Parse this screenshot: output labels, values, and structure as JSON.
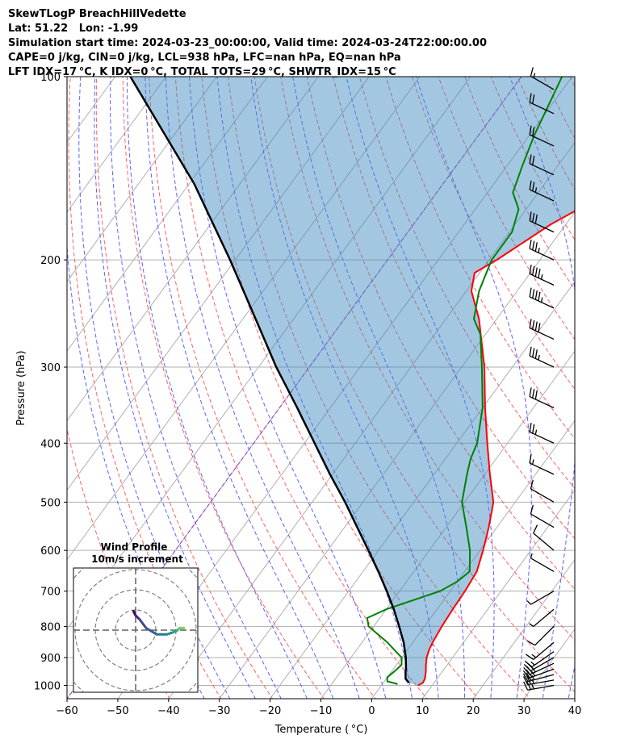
{
  "header": {
    "line1": "SkewTLogP BreachHillVedette",
    "line2": "Lat: 51.22   Lon: -1.99",
    "line3": "Simulation start time: 2024-03-23_00:00:00, Valid time: 2024-03-24T22:00:00.00",
    "line4": "CAPE=0 j/kg, CIN=0 j/kg, LCL=938 hPa, LFC=nan hPa, EQ=nan hPa",
    "line5": "LFT IDX=17 °C, K IDX=0 °C, TOTAL TOTS=29 °C, SHWTR_IDX=15 °C"
  },
  "chart_data": {
    "type": "line",
    "xlabel": "Temperature ( °C)",
    "ylabel": "Pressure (hPa)",
    "xlim": [
      -60,
      40
    ],
    "ylim": [
      1050,
      100
    ],
    "yscale": "log",
    "xticks": [
      -60,
      -50,
      -40,
      -30,
      -20,
      -10,
      0,
      10,
      20,
      30,
      40
    ],
    "xtick_labels": [
      "−60",
      "−50",
      "−40",
      "−30",
      "−20",
      "−10",
      "0",
      "10",
      "20",
      "30",
      "40"
    ],
    "yticks": [
      1000,
      900,
      800,
      700,
      600,
      500,
      400,
      300,
      200,
      100
    ],
    "ytick_labels": [
      "1000",
      "900",
      "800",
      "700",
      "600",
      "500",
      "400",
      "300",
      "200",
      "100"
    ],
    "series": [
      {
        "role": "temperature",
        "color": "#ff0000",
        "pressure": [
          1000,
          990,
          975,
          950,
          925,
          900,
          875,
          850,
          800,
          750,
          700,
          650,
          600,
          550,
          500,
          450,
          400,
          350,
          300,
          250,
          225,
          210,
          200,
          175,
          160,
          150,
          140,
          125,
          115,
          100
        ],
        "temperature": [
          7.2,
          7.8,
          7.6,
          6.8,
          5.8,
          4.9,
          4.3,
          3.9,
          3.4,
          3.1,
          2.9,
          2.4,
          0.6,
          -1.6,
          -4.3,
          -9,
          -14,
          -19.5,
          -25.5,
          -33.5,
          -39,
          -41,
          -38.5,
          -33,
          -28,
          -26,
          -24,
          -21.5,
          -20,
          -18
        ]
      },
      {
        "role": "dewpoint",
        "color": "#008000",
        "pressure": [
          995,
          985,
          970,
          950,
          925,
          900,
          875,
          850,
          800,
          775,
          750,
          700,
          675,
          650,
          600,
          550,
          500,
          450,
          425,
          400,
          350,
          300,
          265,
          250,
          225,
          200,
          180,
          165,
          155,
          140,
          125,
          100
        ],
        "temperature": [
          3,
          0.6,
          0,
          0.5,
          1,
          0,
          -2.5,
          -5,
          -11,
          -12.5,
          -10,
          -2,
          0,
          1,
          -2,
          -6,
          -10.5,
          -13.5,
          -15,
          -16,
          -20,
          -26,
          -31,
          -34.5,
          -37.5,
          -39.5,
          -39.5,
          -41.5,
          -45,
          -47,
          -49,
          -52
        ]
      },
      {
        "role": "parcel",
        "color": "#000000",
        "pressure": [
          990,
          975,
          950,
          938,
          900,
          850,
          800,
          750,
          700,
          650,
          600,
          550,
          500,
          450,
          400,
          350,
          300,
          250,
          200,
          150,
          100
        ],
        "temperature": [
          5,
          3.8,
          2.8,
          2.4,
          0.8,
          -1.8,
          -5,
          -8.5,
          -12.5,
          -17,
          -22,
          -27.5,
          -33.5,
          -40.5,
          -48,
          -56.5,
          -66.5,
          -77.5,
          -91,
          -109,
          -137
        ]
      }
    ],
    "wind_barbs": {
      "pressure": [
        1000,
        980,
        960,
        940,
        920,
        900,
        880,
        850,
        800,
        750,
        700,
        650,
        600,
        550,
        500,
        450,
        400,
        350,
        300,
        270,
        240,
        220,
        200,
        180,
        160,
        145,
        130,
        115,
        105
      ],
      "speed_kt": [
        25,
        25,
        25,
        25,
        25,
        20,
        15,
        15,
        10,
        5,
        5,
        5,
        10,
        10,
        10,
        15,
        25,
        30,
        35,
        40,
        45,
        45,
        35,
        30,
        25,
        20,
        20,
        20,
        15
      ],
      "direction_deg": [
        260,
        260,
        255,
        250,
        245,
        240,
        235,
        230,
        225,
        230,
        240,
        300,
        310,
        300,
        300,
        295,
        295,
        295,
        295,
        295,
        295,
        295,
        295,
        295,
        295,
        295,
        295,
        295,
        300
      ]
    },
    "hodograph": {
      "title": "Wind Profile",
      "subtitle": "10m/s increment",
      "ring_spacing_ms": 10,
      "u": [
        -1,
        0,
        2,
        5,
        10,
        15,
        18,
        20,
        21,
        23
      ],
      "v": [
        9,
        7,
        5,
        1,
        -2,
        -2,
        -1,
        0,
        1,
        1
      ]
    }
  }
}
